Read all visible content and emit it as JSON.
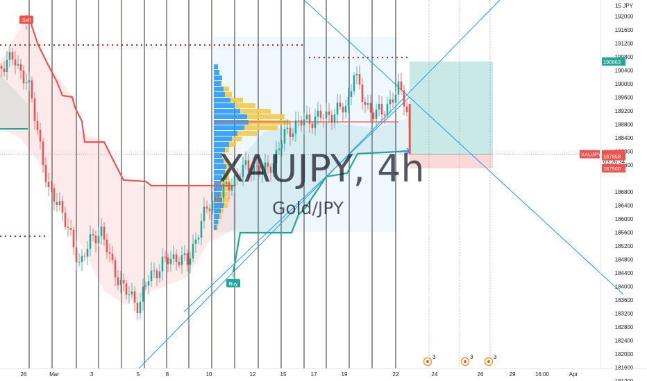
{
  "chart_data": {
    "type": "candlestick",
    "symbol": "XAUJPY",
    "watermark": {
      "title": "XAUJPY, 4h",
      "subtitle": "Gold/JPY"
    },
    "currency": "JPY",
    "y_ticks": [
      192000,
      191600,
      191200,
      190800,
      190400,
      190000,
      189600,
      189200,
      188800,
      188400,
      188000,
      187600,
      186800,
      186400,
      186000,
      185600,
      185200,
      184800,
      184400,
      184000,
      183600,
      183200,
      182800,
      182400,
      182000,
      181600,
      181200
    ],
    "ylim": [
      181000,
      192300
    ],
    "x_ticks": [
      "26",
      "Mar",
      "3",
      "5",
      "8",
      "10",
      "12",
      "15",
      "17",
      "19",
      "22",
      "24",
      "26",
      "29",
      "16:00",
      "Apr"
    ],
    "price_labels": {
      "last": {
        "symbol": "XAUJPY",
        "price": "187920",
        "countdown": "03:26:34",
        "color": "#ef5350"
      },
      "target": {
        "price": "190663",
        "color": "#26a69a"
      },
      "stop_levels": [
        {
          "price": "187900",
          "color": "#ef5350"
        },
        {
          "price": "187858",
          "color": "#ef5350"
        },
        {
          "price": "187500",
          "color": "#ef5350"
        }
      ]
    },
    "signals": [
      {
        "label": "Sell",
        "color": "#ef5350",
        "x": 38,
        "y": 191900
      },
      {
        "label": "Buy",
        "color": "#26a69a",
        "x": 336,
        "y": 184100
      }
    ],
    "key_levels": [
      191200,
      188900,
      185300
    ],
    "position": {
      "entry": 187920,
      "target": 190663,
      "stop": 187500
    },
    "colors": {
      "up": "#26a69a",
      "down": "#ef5350",
      "trend_up": "#26a69a",
      "trend_down": "#ef5350",
      "trendline": "#2196f3"
    },
    "events": [
      "3",
      "3",
      "3"
    ]
  }
}
